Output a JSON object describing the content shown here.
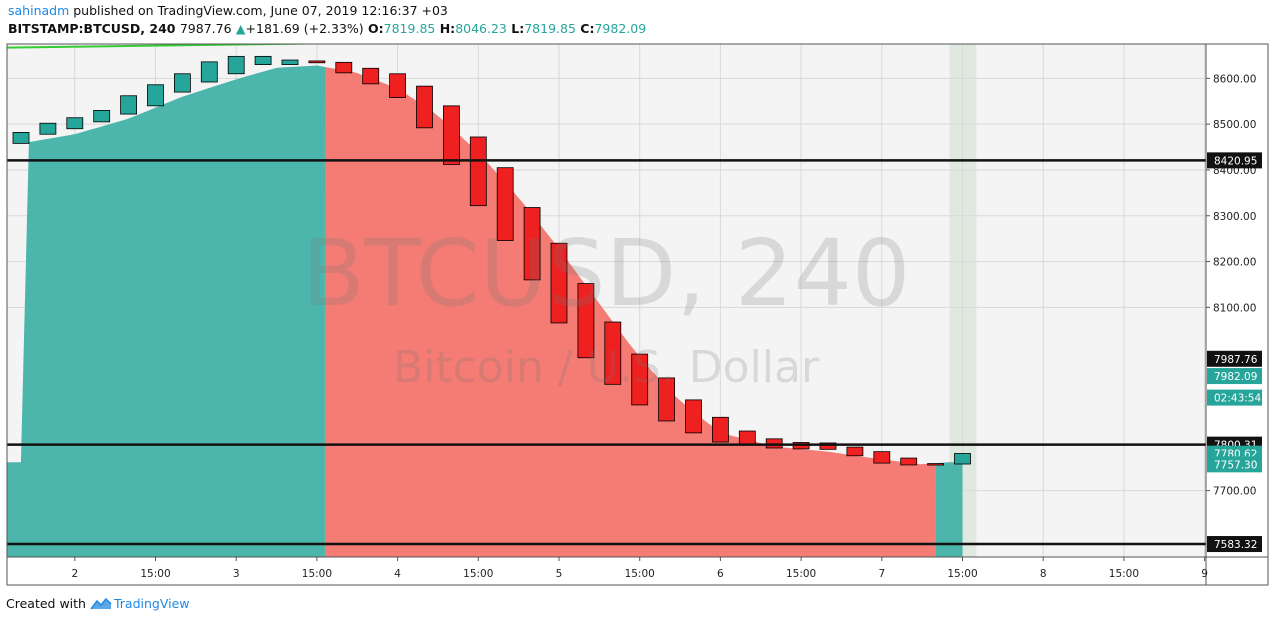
{
  "header": {
    "user": "sahinadm",
    "published_text": "published on TradingView.com, June 07, 2019 12:16:37 +03",
    "symbol": "BITSTAMP:BTCUSD, 240",
    "last": "7987.76",
    "change": "+181.69 (+2.33%)",
    "o_label": "O:",
    "o_value": "7819.85",
    "h_label": "H:",
    "h_value": "8046.23",
    "l_label": "L:",
    "l_value": "7819.85",
    "c_label": "C:",
    "c_value": "7982.09"
  },
  "watermark": {
    "line1": "BTCUSD, 240",
    "line2": "Bitcoin / U.S. Dollar"
  },
  "footer": {
    "created_with": "Created with",
    "brand": "TradingView"
  },
  "colors": {
    "up": "#26a69a",
    "down": "#ef2020",
    "hline": "#111111",
    "trend": "#33cc33",
    "area_up": "#4db6ac",
    "area_down": "#f47c74",
    "bg": "#f4f4f4",
    "grid": "#d9d9d9"
  },
  "chart_data": {
    "type": "candlestick",
    "ylim": [
      7555,
      8675
    ],
    "y_ticks": [
      {
        "value": 7700,
        "label": "7700.00"
      },
      {
        "value": 8100,
        "label": "8100.00"
      },
      {
        "value": 8200,
        "label": "8200.00"
      },
      {
        "value": 8300,
        "label": "8300.00"
      },
      {
        "value": 8400,
        "label": "8400.00"
      },
      {
        "value": 8500,
        "label": "8500.00"
      },
      {
        "value": 8600,
        "label": "8600.00"
      }
    ],
    "x_ticks": [
      {
        "bar": 2.0,
        "label": "2"
      },
      {
        "bar": 5.0,
        "label": "15:00"
      },
      {
        "bar": 8.0,
        "label": "3"
      },
      {
        "bar": 11.0,
        "label": "15:00"
      },
      {
        "bar": 14.0,
        "label": "4"
      },
      {
        "bar": 17.0,
        "label": "15:00"
      },
      {
        "bar": 20.0,
        "label": "5"
      },
      {
        "bar": 23.0,
        "label": "15:00"
      },
      {
        "bar": 26.0,
        "label": "6"
      },
      {
        "bar": 29.0,
        "label": "15:00"
      },
      {
        "bar": 32.0,
        "label": "7"
      },
      {
        "bar": 35.0,
        "label": "15:00"
      },
      {
        "bar": 38.0,
        "label": "8"
      },
      {
        "bar": 41.0,
        "label": "15:00"
      },
      {
        "bar": 44.0,
        "label": "9"
      }
    ],
    "candles": [
      {
        "o": 8458,
        "c": 8482
      },
      {
        "o": 8478,
        "c": 8502
      },
      {
        "o": 8490,
        "c": 8514
      },
      {
        "o": 8505,
        "c": 8530
      },
      {
        "o": 8522,
        "c": 8562
      },
      {
        "o": 8540,
        "c": 8586
      },
      {
        "o": 8570,
        "c": 8610
      },
      {
        "o": 8592,
        "c": 8636
      },
      {
        "o": 8610,
        "c": 8648
      },
      {
        "o": 8630,
        "c": 8648
      },
      {
        "o": 8630,
        "c": 8640
      },
      {
        "o": 8638,
        "c": 8634
      },
      {
        "o": 8635,
        "c": 8612
      },
      {
        "o": 8622,
        "c": 8588
      },
      {
        "o": 8610,
        "c": 8558
      },
      {
        "o": 8583,
        "c": 8492
      },
      {
        "o": 8540,
        "c": 8412
      },
      {
        "o": 8472,
        "c": 8322
      },
      {
        "o": 8405,
        "c": 8246
      },
      {
        "o": 8318,
        "c": 8160
      },
      {
        "o": 8240,
        "c": 8066
      },
      {
        "o": 8152,
        "c": 7990
      },
      {
        "o": 8068,
        "c": 7932
      },
      {
        "o": 7998,
        "c": 7887
      },
      {
        "o": 7946,
        "c": 7852
      },
      {
        "o": 7898,
        "c": 7826
      },
      {
        "o": 7860,
        "c": 7806
      },
      {
        "o": 7830,
        "c": 7800
      },
      {
        "o": 7813,
        "c": 7793
      },
      {
        "o": 7805,
        "c": 7791
      },
      {
        "o": 7804,
        "c": 7790
      },
      {
        "o": 7795,
        "c": 7776
      },
      {
        "o": 7785,
        "c": 7760
      },
      {
        "o": 7771,
        "c": 7756
      },
      {
        "o": 7759,
        "c": 7756
      },
      {
        "o": 7758,
        "c": 7781
      }
    ],
    "baseline_curve": [
      {
        "bar": 0,
        "v": 8458
      },
      {
        "bar": 2,
        "v": 8478
      },
      {
        "bar": 4,
        "v": 8512
      },
      {
        "bar": 6,
        "v": 8560
      },
      {
        "bar": 8,
        "v": 8598
      },
      {
        "bar": 9.5,
        "v": 8623
      },
      {
        "bar": 11,
        "v": 8628
      },
      {
        "bar": 12.5,
        "v": 8612
      },
      {
        "bar": 14,
        "v": 8578
      },
      {
        "bar": 15.5,
        "v": 8520
      },
      {
        "bar": 17,
        "v": 8438
      },
      {
        "bar": 18.5,
        "v": 8340
      },
      {
        "bar": 20,
        "v": 8228
      },
      {
        "bar": 21.5,
        "v": 8108
      },
      {
        "bar": 23,
        "v": 7990
      },
      {
        "bar": 24.5,
        "v": 7895
      },
      {
        "bar": 26,
        "v": 7826
      },
      {
        "bar": 28,
        "v": 7796
      },
      {
        "bar": 30,
        "v": 7785
      },
      {
        "bar": 32,
        "v": 7768
      },
      {
        "bar": 33.5,
        "v": 7757
      },
      {
        "bar": 34.5,
        "v": 7762
      }
    ],
    "up_region_bars": [
      [
        0,
        11.3
      ],
      [
        34.0,
        35.0
      ]
    ],
    "down_region_bars": [
      [
        11.3,
        34.0
      ]
    ],
    "highlight_bars": [
      35.0,
      36.0
    ],
    "trendline": {
      "from": {
        "bar": 0,
        "v": 8667
      },
      "to": {
        "bar": 17.0,
        "v": 8681
      }
    },
    "hlines": [
      {
        "value": 8420.95,
        "label": "8420.95"
      },
      {
        "value": 7800.31,
        "label": "7800.31"
      },
      {
        "value": 7583.32,
        "label": "7583.32"
      }
    ],
    "price_labels": [
      {
        "value": 7987.76,
        "label": "7987.76",
        "color": "#111111"
      },
      {
        "value": 7950,
        "label": "7982.09",
        "color": "#26a69a"
      },
      {
        "value": 7903,
        "label": "02:43:54",
        "color": "#26a69a"
      },
      {
        "value": 7780.62,
        "label": "7780.62",
        "color": "#26a69a"
      },
      {
        "value": 7757.3,
        "label": "7757.30",
        "color": "#26a69a"
      }
    ]
  }
}
